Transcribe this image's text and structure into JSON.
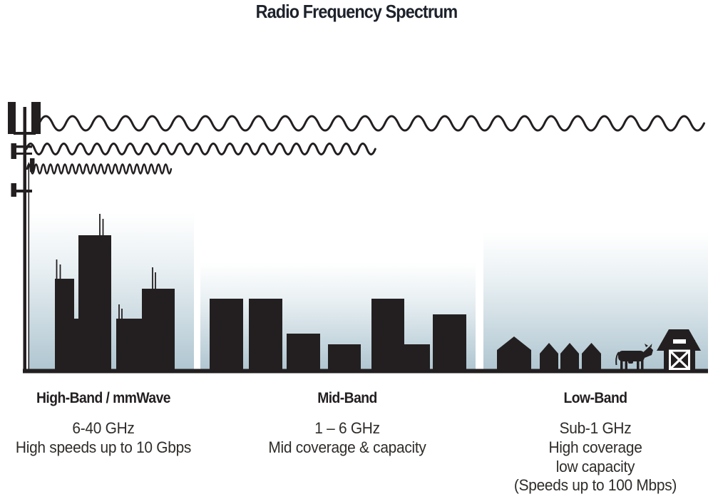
{
  "title": "Radio Frequency Spectrum",
  "bands": [
    {
      "id": "high-band",
      "heading": "High-Band / mmWave",
      "details": [
        "6-40 GHz",
        "High speeds up to 10 Gbps"
      ]
    },
    {
      "id": "mid-band",
      "heading": "Mid-Band",
      "details": [
        "1 – 6 GHz",
        "Mid coverage & capacity"
      ]
    },
    {
      "id": "low-band",
      "heading": "Low-Band",
      "details": [
        "Sub-1 GHz",
        "High coverage",
        "low capacity",
        "(Speeds up to 100 Mbps)"
      ]
    }
  ],
  "figure": {
    "icons": [
      "cell-tower-icon",
      "long-wave-icon",
      "medium-wave-icon",
      "short-wave-icon",
      "city-skyline-icon",
      "midrise-buildings-icon",
      "houses-icon",
      "cow-icon",
      "barn-icon"
    ],
    "waves": [
      {
        "name": "long-wave",
        "wavelength": "long",
        "reaches": "low-band"
      },
      {
        "name": "medium-wave",
        "wavelength": "medium",
        "reaches": "mid-band"
      },
      {
        "name": "short-wave",
        "wavelength": "short",
        "reaches": "high-band"
      }
    ],
    "colors": {
      "ink": "#231f20",
      "sky_top": "#ffffff",
      "sky_bottom": "#b0c6d1",
      "heading": "#231f20",
      "text": "#2f2c29",
      "title": "#1d222b"
    }
  }
}
